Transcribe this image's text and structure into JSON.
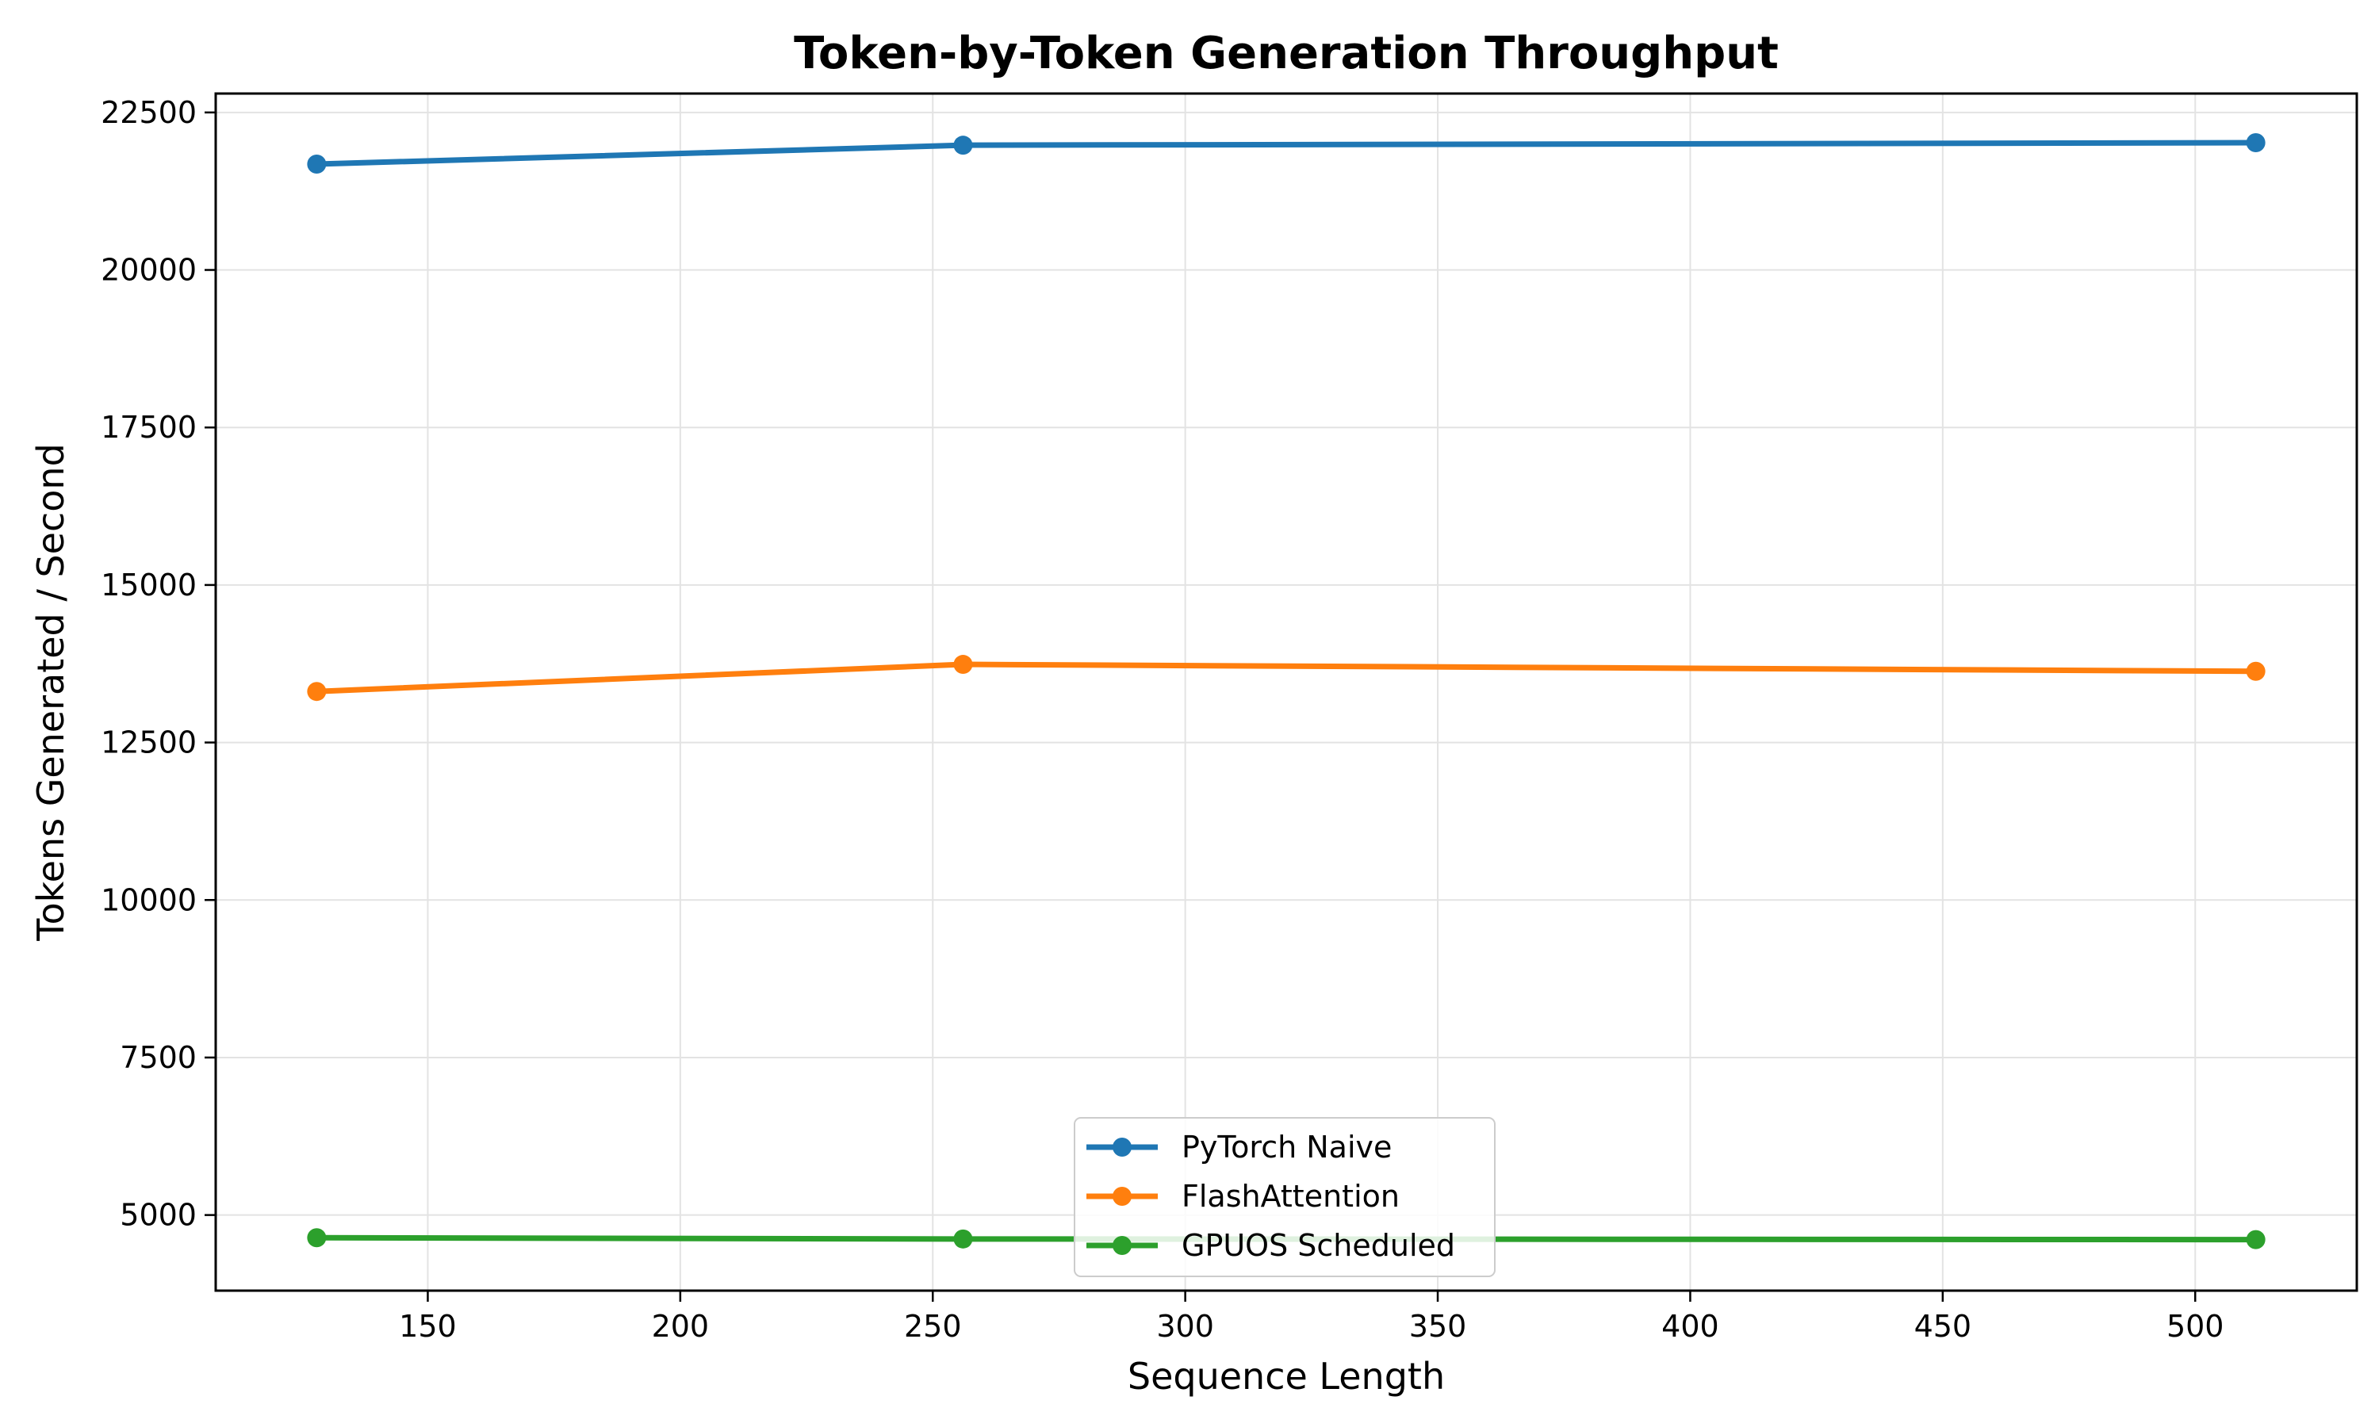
{
  "chart_data": {
    "type": "line",
    "title": "Token-by-Token Generation Throughput",
    "xlabel": "Sequence Length",
    "ylabel": "Tokens Generated / Second",
    "x": [
      128,
      256,
      512
    ],
    "xlim": [
      108,
      532
    ],
    "ylim": [
      3800,
      22800
    ],
    "xticks": [
      150,
      200,
      250,
      300,
      350,
      400,
      450,
      500
    ],
    "yticks": [
      5000,
      7500,
      10000,
      12500,
      15000,
      17500,
      20000,
      22500
    ],
    "grid": true,
    "legend_position": "lower center",
    "series": [
      {
        "name": "PyTorch Naive",
        "color": "#1f77b4",
        "values": [
          21680,
          21980,
          22020
        ]
      },
      {
        "name": "FlashAttention",
        "color": "#ff7f0e",
        "values": [
          13310,
          13740,
          13630
        ]
      },
      {
        "name": "GPUOS Scheduled",
        "color": "#2ca02c",
        "values": [
          4640,
          4620,
          4610
        ]
      }
    ]
  }
}
